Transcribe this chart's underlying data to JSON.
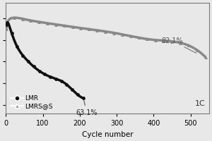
{
  "xlabel": "Cycle number",
  "xlim": [
    0,
    550
  ],
  "background_color": "#e8e8e8",
  "lmr_color": "#111111",
  "lmrs_color": "#888888",
  "annotation_lmr": "63.1%",
  "annotation_lmrs": "82.1%",
  "rate_label": "1C",
  "legend_lmr": "LMR",
  "legend_lmrs": "LMRS@S",
  "lmr_marker": "o",
  "lmrs_marker": "^"
}
